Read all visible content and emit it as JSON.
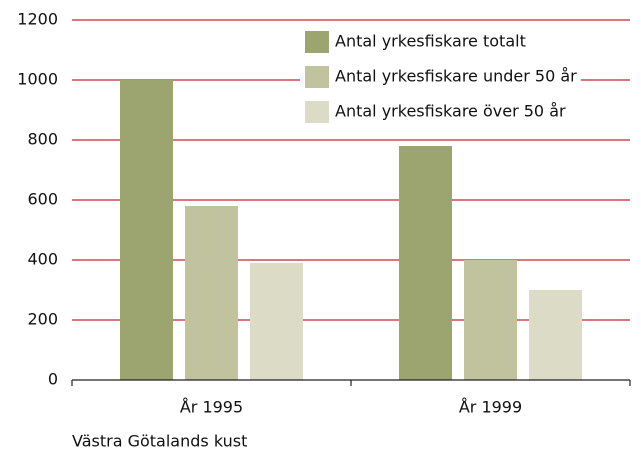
{
  "chart_data": {
    "type": "bar",
    "categories": [
      "År 1995",
      "År 1999"
    ],
    "series": [
      {
        "name": "Antal yrkesfiskare totalt",
        "color": "#9ca56f",
        "values": [
          1000,
          780
        ]
      },
      {
        "name": "Antal yrkesfiskare under 50 år",
        "color": "#c0c39d",
        "values": [
          580,
          400
        ]
      },
      {
        "name": "Antal yrkesfiskare över 50 år",
        "color": "#dcdcc6",
        "values": [
          390,
          300
        ]
      }
    ],
    "ylim": [
      0,
      1200
    ],
    "yticks": [
      0,
      200,
      400,
      600,
      800,
      1000,
      1200
    ],
    "grid": true,
    "grid_color": "#c4262e",
    "legend": "top-right",
    "caption": "Västra Götalands kust"
  }
}
